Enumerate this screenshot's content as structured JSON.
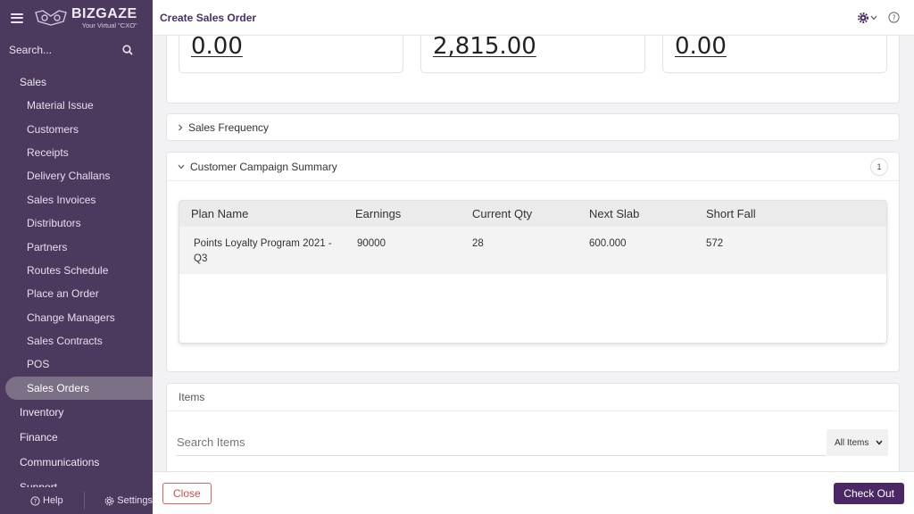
{
  "sidebar": {
    "brand_name": "BIZGAZE",
    "brand_tagline": "Your Virtual \"CXO\"",
    "search_placeholder": "Search...",
    "sections": [
      {
        "label": "Sales"
      }
    ],
    "sales_items": [
      {
        "label": "Material Issue"
      },
      {
        "label": "Customers"
      },
      {
        "label": "Receipts"
      },
      {
        "label": "Delivery Challans"
      },
      {
        "label": "Sales Invoices"
      },
      {
        "label": "Distributors"
      },
      {
        "label": "Partners"
      },
      {
        "label": "Routes Schedule"
      },
      {
        "label": "Place an Order"
      },
      {
        "label": "Change Managers"
      },
      {
        "label": "Sales Contracts"
      },
      {
        "label": "POS"
      },
      {
        "label": "Sales Orders",
        "active": true
      }
    ],
    "lower_sections": [
      {
        "label": "Inventory"
      },
      {
        "label": "Finance"
      },
      {
        "label": "Communications"
      },
      {
        "label": "Support"
      }
    ],
    "help_label": "Help",
    "settings_label": "Settings"
  },
  "header": {
    "title": "Create Sales Order"
  },
  "stats": [
    {
      "value": "0.00"
    },
    {
      "value": "2,815.00"
    },
    {
      "value": "0.00"
    }
  ],
  "sales_frequency": {
    "label": "Sales Frequency"
  },
  "campaign": {
    "label": "Customer Campaign Summary",
    "count": "1",
    "columns": [
      "Plan Name",
      "Earnings",
      "Current Qty",
      "Next Slab",
      "Short Fall"
    ],
    "rows": [
      {
        "plan_name": "Points Loyalty Program 2021 - Q3",
        "earnings": "90000",
        "current_qty": "28",
        "next_slab": "600.000",
        "short_fall": "572"
      }
    ]
  },
  "items": {
    "label": "Items",
    "search_placeholder": "Search Items",
    "filter_value": "All Items"
  },
  "footer": {
    "close_label": "Close",
    "checkout_label": "Check Out"
  },
  "colors": {
    "sidebar_bg": "#4c3a5e",
    "accent": "#4b2865",
    "danger": "#e04848"
  }
}
